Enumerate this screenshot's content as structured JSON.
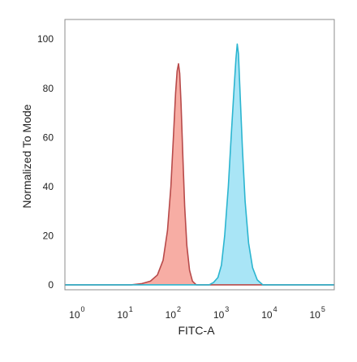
{
  "chart_data": {
    "type": "area",
    "xlabel": "FITC-A",
    "ylabel": "Normalized To Mode",
    "x_scale": "log",
    "xlim": [
      0.5,
      200000
    ],
    "ylim": [
      -2,
      108
    ],
    "y_ticks": [
      0,
      20,
      40,
      60,
      80,
      100
    ],
    "x_ticks": [
      {
        "value": 1,
        "base": "10",
        "exp": "0"
      },
      {
        "value": 10,
        "base": "10",
        "exp": "1"
      },
      {
        "value": 100,
        "base": "10",
        "exp": "2"
      },
      {
        "value": 1000,
        "base": "10",
        "exp": "3"
      },
      {
        "value": 10000,
        "base": "10",
        "exp": "4"
      },
      {
        "value": 100000,
        "base": "10",
        "exp": "5"
      }
    ],
    "grid": false,
    "legend": "none",
    "series": [
      {
        "fill": "#f7a99f",
        "stroke": "#b84a4a",
        "points": [
          [
            0.5,
            0
          ],
          [
            12,
            0
          ],
          [
            20,
            0.5
          ],
          [
            30,
            1.5
          ],
          [
            42,
            4
          ],
          [
            55,
            10
          ],
          [
            68,
            22
          ],
          [
            80,
            40
          ],
          [
            90,
            60
          ],
          [
            100,
            78
          ],
          [
            108,
            87
          ],
          [
            115,
            90
          ],
          [
            122,
            86
          ],
          [
            130,
            74
          ],
          [
            142,
            52
          ],
          [
            155,
            32
          ],
          [
            172,
            16
          ],
          [
            195,
            6
          ],
          [
            225,
            1.5
          ],
          [
            270,
            0
          ],
          [
            200000,
            0
          ]
        ]
      },
      {
        "fill": "#a4e4f5",
        "stroke": "#2bb5d0",
        "points": [
          [
            0.5,
            0
          ],
          [
            500,
            0
          ],
          [
            620,
            1
          ],
          [
            760,
            3
          ],
          [
            900,
            8
          ],
          [
            1050,
            20
          ],
          [
            1250,
            40
          ],
          [
            1450,
            62
          ],
          [
            1650,
            80
          ],
          [
            1800,
            92
          ],
          [
            1920,
            98
          ],
          [
            2030,
            94
          ],
          [
            2200,
            78
          ],
          [
            2450,
            56
          ],
          [
            2800,
            34
          ],
          [
            3300,
            17
          ],
          [
            4000,
            7
          ],
          [
            5000,
            2
          ],
          [
            6500,
            0
          ],
          [
            200000,
            0
          ]
        ]
      }
    ]
  }
}
